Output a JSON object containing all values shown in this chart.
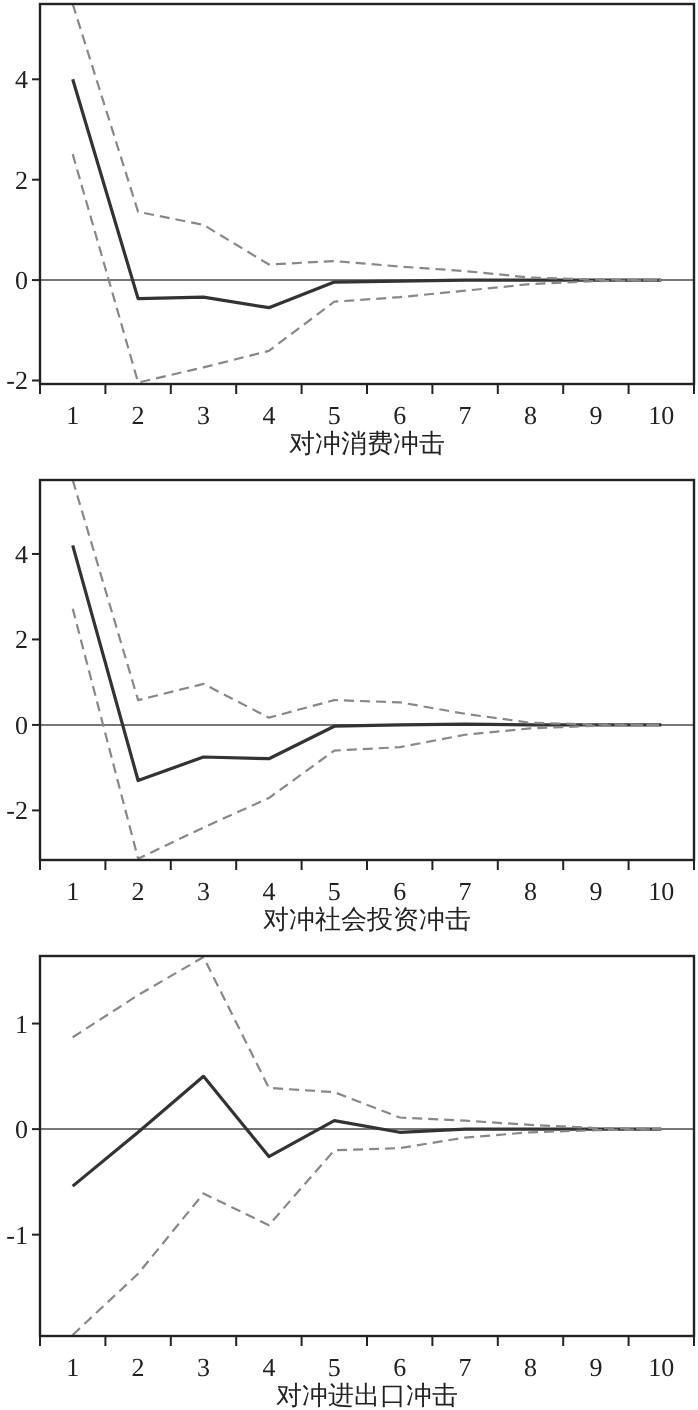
{
  "chart_data": [
    {
      "type": "line",
      "xlabel": "对冲消费冲击",
      "categories": [
        "1",
        "2",
        "3",
        "4",
        "5",
        "6",
        "7",
        "8",
        "9",
        "10"
      ],
      "ylim": [
        -2.07,
        5.5
      ],
      "yticks": [
        -2,
        0,
        2,
        4
      ],
      "grid": false,
      "marker": "none",
      "ref_lines": [
        {
          "axis": "y",
          "value": 0,
          "color": "#777777",
          "line_style": "solid"
        }
      ],
      "series": [
        {
          "color": "#333333",
          "line_style": "solid",
          "values": [
            4.0,
            -0.37,
            -0.34,
            -0.55,
            -0.04,
            -0.02,
            0,
            0,
            0,
            0
          ]
        },
        {
          "color": "#888888",
          "line_style": "dashed",
          "values": [
            5.5,
            1.36,
            1.1,
            0.31,
            0.38,
            0.27,
            0.18,
            0.05,
            0.01,
            0
          ]
        },
        {
          "color": "#888888",
          "line_style": "dashed",
          "values": [
            2.51,
            -2.04,
            -1.74,
            -1.41,
            -0.43,
            -0.34,
            -0.21,
            -0.08,
            -0.02,
            0
          ]
        }
      ]
    },
    {
      "type": "line",
      "xlabel": "对冲社会投资冲击",
      "categories": [
        "1",
        "2",
        "3",
        "4",
        "5",
        "6",
        "7",
        "8",
        "9",
        "10"
      ],
      "ylim": [
        -3.16,
        5.73
      ],
      "yticks": [
        -2,
        0,
        2,
        4
      ],
      "grid": false,
      "marker": "none",
      "ref_lines": [
        {
          "axis": "y",
          "value": 0,
          "color": "#777777",
          "line_style": "solid"
        }
      ],
      "series": [
        {
          "color": "#333333",
          "line_style": "solid",
          "values": [
            4.2,
            -1.3,
            -0.75,
            -0.79,
            -0.03,
            0,
            0.02,
            0,
            0,
            0
          ]
        },
        {
          "color": "#888888",
          "line_style": "dashed",
          "values": [
            5.73,
            0.58,
            0.96,
            0.17,
            0.58,
            0.53,
            0.26,
            0.05,
            0.01,
            0
          ]
        },
        {
          "color": "#888888",
          "line_style": "dashed",
          "values": [
            2.72,
            -3.13,
            -2.4,
            -1.71,
            -0.6,
            -0.52,
            -0.23,
            -0.08,
            -0.02,
            0
          ]
        }
      ]
    },
    {
      "type": "line",
      "xlabel": "对冲进出口冲击",
      "categories": [
        "1",
        "2",
        "3",
        "4",
        "5",
        "6",
        "7",
        "8",
        "9",
        "10"
      ],
      "ylim": [
        -1.96,
        1.64
      ],
      "yticks": [
        -1,
        0,
        1
      ],
      "grid": false,
      "marker": "none",
      "ref_lines": [
        {
          "axis": "y",
          "value": 0,
          "color": "#777777",
          "line_style": "solid"
        }
      ],
      "series": [
        {
          "color": "#333333",
          "line_style": "solid",
          "values": [
            -0.54,
            -0.03,
            0.5,
            -0.26,
            0.08,
            -0.03,
            0,
            0,
            0,
            0
          ]
        },
        {
          "color": "#888888",
          "line_style": "dashed",
          "values": [
            0.87,
            1.27,
            1.63,
            0.39,
            0.35,
            0.11,
            0.08,
            0.04,
            0.01,
            0
          ]
        },
        {
          "color": "#888888",
          "line_style": "dashed",
          "values": [
            -1.95,
            -1.37,
            -0.61,
            -0.91,
            -0.2,
            -0.18,
            -0.08,
            -0.03,
            -0.01,
            0
          ]
        }
      ]
    }
  ]
}
